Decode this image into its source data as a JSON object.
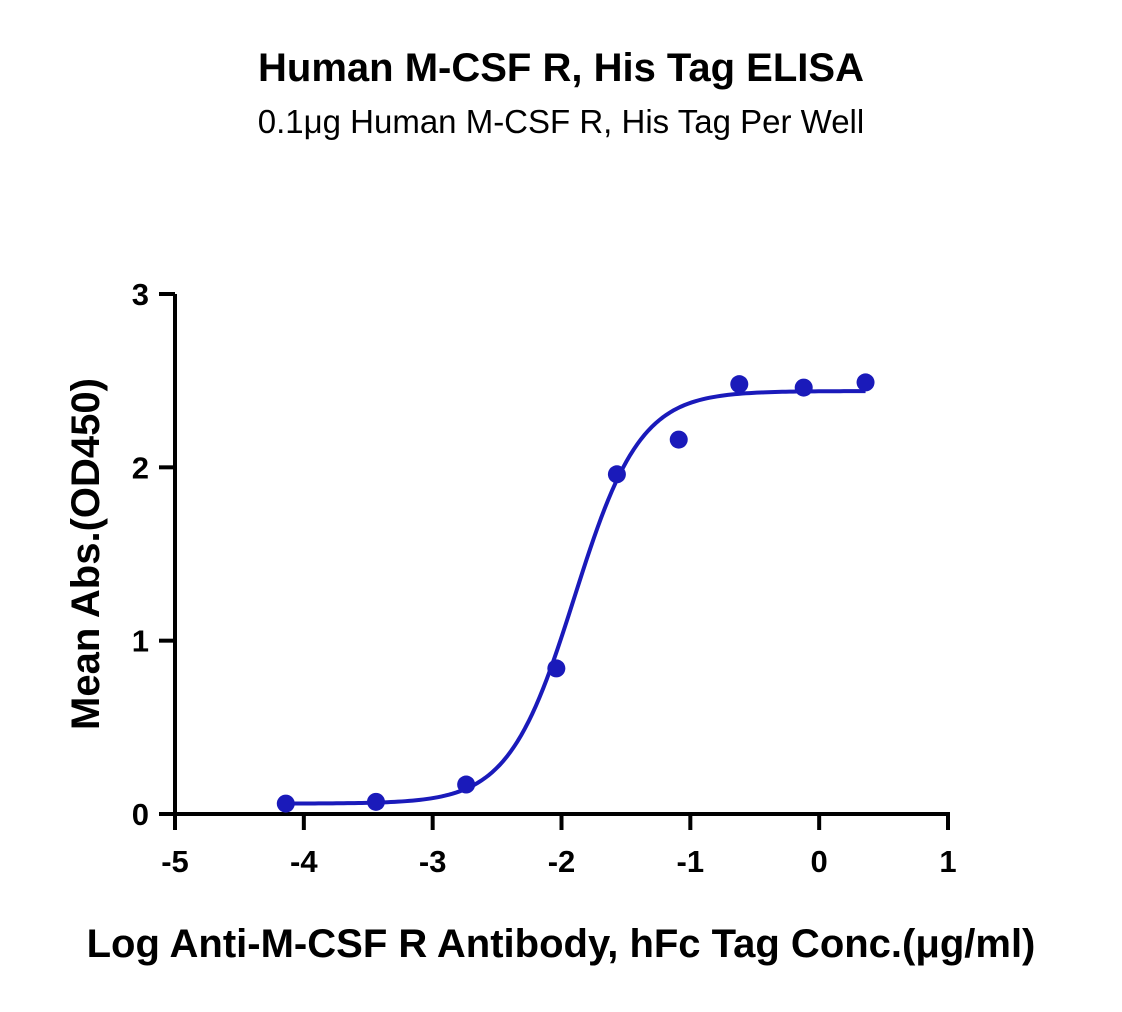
{
  "chart_data": {
    "type": "scatter",
    "title": "Human M-CSF R, His Tag ELISA",
    "subtitle": "0.1μg Human M-CSF R, His Tag Per Well",
    "xlabel": "Log Anti-M-CSF R Antibody, hFc Tag Conc.(μg/ml)",
    "ylabel": "Mean Abs.(OD450)",
    "xlim": [
      -5,
      1
    ],
    "ylim": [
      0,
      3
    ],
    "xticks": [
      -5,
      -4,
      -3,
      -2,
      -1,
      0,
      1
    ],
    "yticks": [
      0,
      1,
      2,
      3
    ],
    "xtick_labels": [
      "-5",
      "-4",
      "-3",
      "-2",
      "-1",
      "0",
      "1"
    ],
    "ytick_labels": [
      "0",
      "1",
      "2",
      "3"
    ],
    "grid": false,
    "legend": "none",
    "color": "#1a1aba",
    "series": [
      {
        "points": {
          "x": [
            -4.14,
            -3.44,
            -2.74,
            -2.04,
            -1.57,
            -1.09,
            -0.62,
            -0.12,
            0.36
          ],
          "y": [
            0.06,
            0.07,
            0.17,
            0.84,
            1.96,
            2.16,
            2.48,
            2.46,
            2.49
          ]
        },
        "fit": {
          "model": "4PL",
          "bottom": 0.06,
          "top": 2.44,
          "log_ec50": -1.9,
          "hill_slope": 1.7,
          "x_range": [
            -4.14,
            0.36
          ]
        }
      }
    ]
  }
}
